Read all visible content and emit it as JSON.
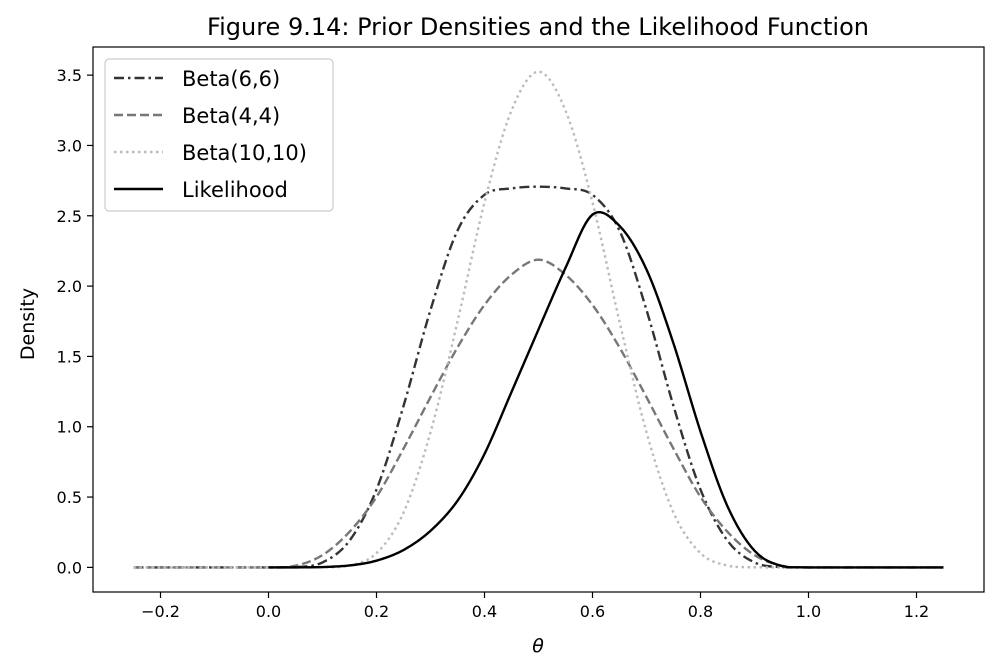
{
  "chart_data": {
    "type": "line",
    "title": "Figure 9.14: Prior Densities and the Likelihood Function",
    "xlabel": "θ",
    "ylabel": "Density",
    "xlim": [
      -0.325,
      1.325
    ],
    "ylim": [
      -0.175,
      3.7
    ],
    "xticks": [
      "−0.2",
      "0.0",
      "0.2",
      "0.4",
      "0.6",
      "0.8",
      "1.0",
      "1.2"
    ],
    "xtick_values": [
      -0.2,
      0.0,
      0.2,
      0.4,
      0.6,
      0.8,
      1.0,
      1.2
    ],
    "yticks": [
      "0.0",
      "0.5",
      "1.0",
      "1.5",
      "2.0",
      "2.5",
      "3.0",
      "3.5"
    ],
    "ytick_values": [
      0.0,
      0.5,
      1.0,
      1.5,
      2.0,
      2.5,
      3.0,
      3.5
    ],
    "grid": false,
    "legend_position": "top-left",
    "series": [
      {
        "name": "Beta(6,6)",
        "color": "#333333",
        "dash": "dash-dot",
        "x": [
          -0.25,
          0.0,
          0.05,
          0.1,
          0.15,
          0.2,
          0.25,
          0.3,
          0.35,
          0.4,
          0.45,
          0.5,
          0.55,
          0.6,
          0.65,
          0.7,
          0.75,
          0.8,
          0.85,
          0.9,
          0.95,
          1.0,
          1.25
        ],
        "y": [
          0.0,
          0.0,
          0.0014,
          0.0354,
          0.19,
          0.5536,
          1.1473,
          1.8302,
          2.3949,
          2.6487,
          2.6945,
          2.707,
          2.6945,
          2.6487,
          2.3949,
          1.8302,
          1.1473,
          0.5536,
          0.19,
          0.0354,
          0.0014,
          0.0,
          0.0
        ]
      },
      {
        "name": "Beta(4,4)",
        "color": "#777777",
        "dash": "dashed",
        "x": [
          -0.25,
          0.0,
          0.05,
          0.1,
          0.15,
          0.2,
          0.25,
          0.3,
          0.35,
          0.4,
          0.45,
          0.5,
          0.55,
          0.6,
          0.65,
          0.7,
          0.75,
          0.8,
          0.85,
          0.9,
          0.95,
          1.0,
          1.25
        ],
        "y": [
          0.0,
          0.0,
          0.0119,
          0.0875,
          0.2528,
          0.5013,
          0.8438,
          1.2102,
          1.5637,
          1.8662,
          2.0811,
          2.1875,
          2.0811,
          1.8662,
          1.5637,
          1.2102,
          0.8438,
          0.5013,
          0.2528,
          0.0875,
          0.0119,
          0.0,
          0.0
        ]
      },
      {
        "name": "Beta(10,10)",
        "color": "#bbbbbb",
        "dash": "dotted",
        "x": [
          -0.25,
          0.0,
          0.1,
          0.15,
          0.2,
          0.25,
          0.3,
          0.35,
          0.4,
          0.45,
          0.5,
          0.55,
          0.6,
          0.65,
          0.7,
          0.75,
          0.8,
          0.85,
          0.9,
          1.0,
          1.25
        ],
        "y": [
          0.0,
          0.0,
          0.0004,
          0.0128,
          0.1012,
          0.3893,
          0.9606,
          1.7478,
          2.5947,
          3.2484,
          3.5239,
          3.2484,
          2.5947,
          1.7478,
          0.9606,
          0.3893,
          0.1012,
          0.0128,
          0.0004,
          0.0,
          0.0
        ]
      },
      {
        "name": "Likelihood",
        "color": "#000000",
        "dash": "solid",
        "x": [
          0.0,
          0.05,
          0.1,
          0.15,
          0.2,
          0.25,
          0.3,
          0.35,
          0.4,
          0.45,
          0.5,
          0.55,
          0.6,
          0.65,
          0.7,
          0.75,
          0.8,
          0.85,
          0.9,
          0.95,
          1.0,
          1.25
        ],
        "y": [
          0.0,
          0.0001,
          0.0022,
          0.0135,
          0.0478,
          0.1232,
          0.2596,
          0.4733,
          0.8063,
          1.2472,
          1.6918,
          2.1298,
          2.5082,
          2.4286,
          2.1181,
          1.5921,
          0.9664,
          0.4341,
          0.1184,
          0.0102,
          0.0,
          0.0
        ]
      }
    ]
  }
}
